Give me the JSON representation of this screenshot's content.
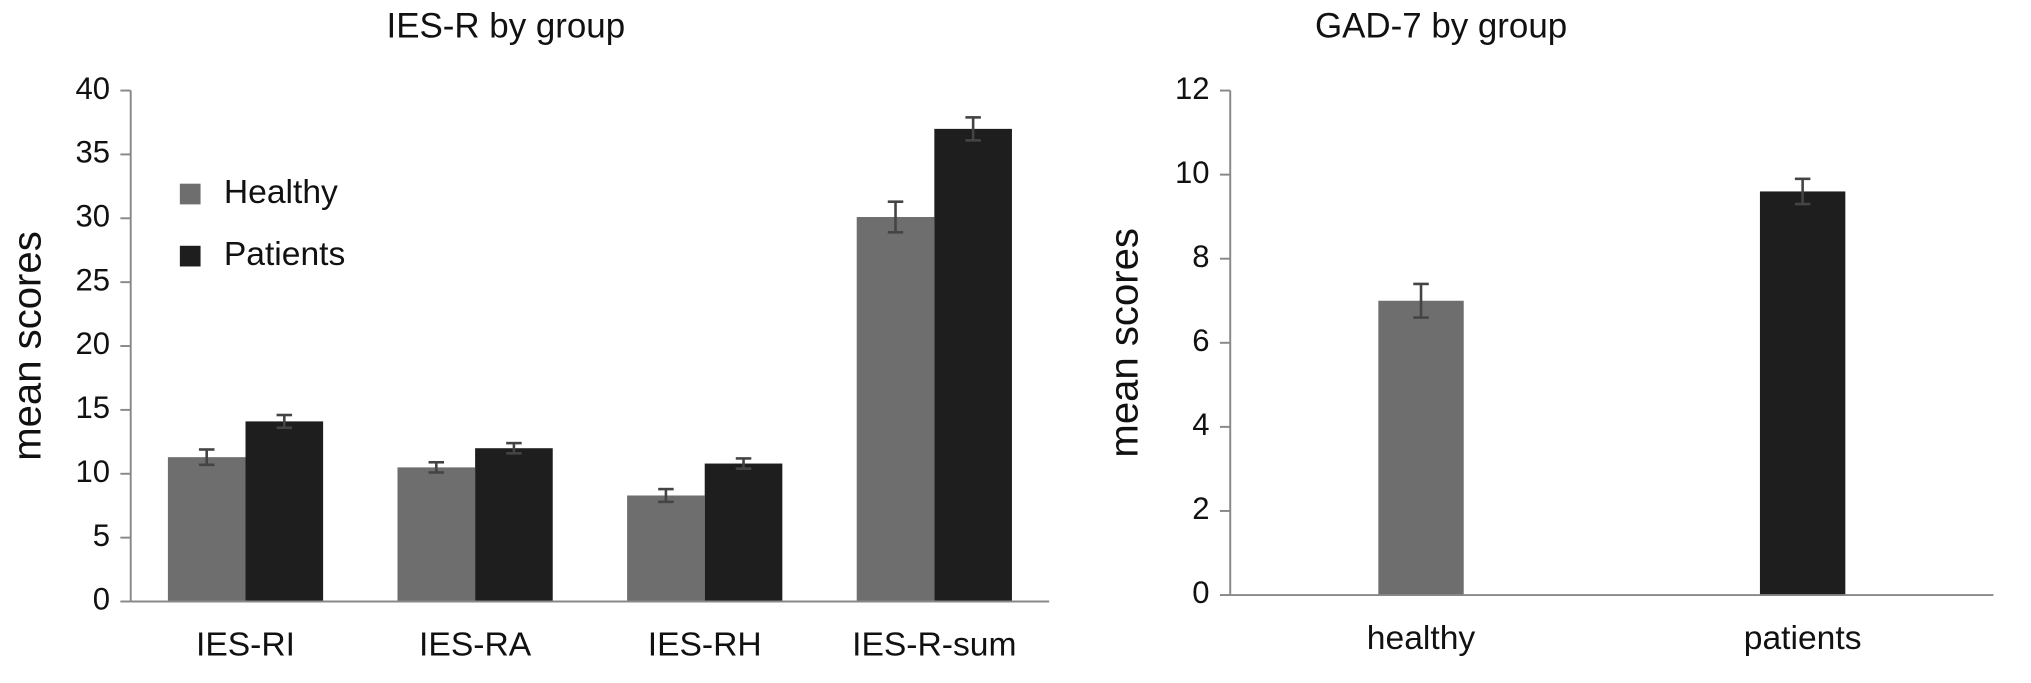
{
  "chart_data": [
    {
      "type": "bar",
      "title": "IES-R by group",
      "ylabel": "mean scores",
      "categories": [
        "IES-RI",
        "IES-RA",
        "IES-RH",
        "IES-R-sum"
      ],
      "series": [
        {
          "name": "Healthy",
          "color": "#6e6e6e",
          "values": [
            11.3,
            10.5,
            8.3,
            30.1
          ],
          "errors": [
            0.6,
            0.4,
            0.5,
            1.2
          ]
        },
        {
          "name": "Patients",
          "color": "#1e1e1e",
          "values": [
            14.1,
            12.0,
            10.8,
            37.0
          ],
          "errors": [
            0.5,
            0.4,
            0.4,
            0.9
          ]
        }
      ],
      "ylim": [
        0,
        40
      ],
      "yticks": [
        0,
        5,
        10,
        15,
        20,
        25,
        30,
        35,
        40
      ],
      "legend": "upper left"
    },
    {
      "type": "bar",
      "title": "GAD-7 by group",
      "ylabel": "mean scores",
      "categories": [
        "healthy",
        "patients"
      ],
      "values": [
        7.0,
        9.6
      ],
      "errors": [
        0.4,
        0.3
      ],
      "colors": [
        "#6e6e6e",
        "#1e1e1e"
      ],
      "ylim": [
        0,
        12
      ],
      "yticks": [
        0,
        2,
        4,
        6,
        8,
        10,
        12
      ]
    }
  ]
}
